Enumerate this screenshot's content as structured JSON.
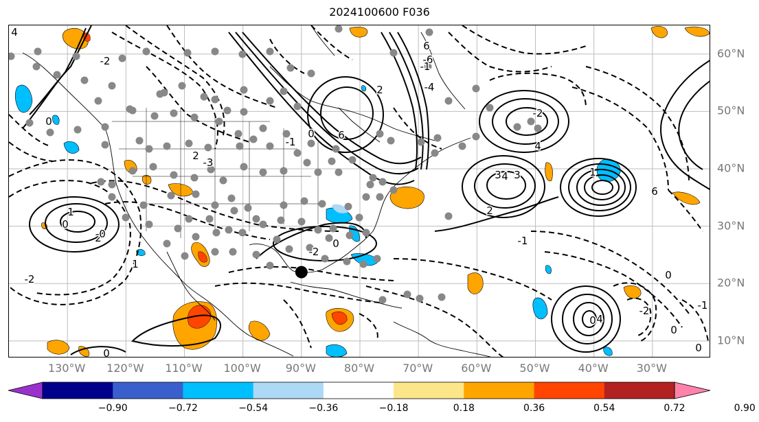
{
  "title": "2024100600 F036",
  "map": {
    "projection": "cylindrical",
    "lon_range": [
      -140,
      -20
    ],
    "lat_range": [
      7,
      65
    ],
    "gridlines": true,
    "lon_labels": [
      "130°W",
      "120°W",
      "110°W",
      "100°W",
      "90°W",
      "80°W",
      "70°W",
      "60°W",
      "50°W",
      "40°W",
      "30°W"
    ],
    "lat_labels": [
      "60°N",
      "50°N",
      "40°N",
      "30°N",
      "20°N",
      "10°N"
    ],
    "contour_labels": [
      "4",
      "-2",
      "0",
      "6",
      "-6",
      "-4",
      "2",
      "-2",
      "0",
      "-1",
      "6",
      "-1",
      "3",
      "4",
      "3",
      "4",
      "2",
      "1",
      "6",
      "-3",
      "2",
      "0",
      "1",
      "0",
      "-2",
      "2",
      "-2",
      "1",
      "0",
      "4",
      "0",
      "0",
      "-2",
      "-1",
      "0",
      "0",
      "-1",
      "0"
    ],
    "marker": {
      "lon": -90,
      "lat": 22,
      "color": "#000000"
    }
  },
  "colorbar": {
    "ticks": [
      "−0.90",
      "−0.72",
      "−0.54",
      "−0.36",
      "−0.18",
      "0.18",
      "0.36",
      "0.54",
      "0.72",
      "0.90"
    ],
    "colors": {
      "under": "#9932CC",
      "bins": [
        "#00008B",
        "#3A5FCD",
        "#00BFFF",
        "#ADD8F6",
        "#FFFFFF",
        "#FCE68A",
        "#FFA500",
        "#FF4500",
        "#B22222"
      ],
      "over": "#FF82AB"
    },
    "extend": "both"
  },
  "colors": {
    "positive_contour": "#000000",
    "negative_contour": "#000000",
    "gray_dots": "#888888",
    "warm_fill": "#FFA500",
    "cool_fill": "#00BFFF"
  }
}
